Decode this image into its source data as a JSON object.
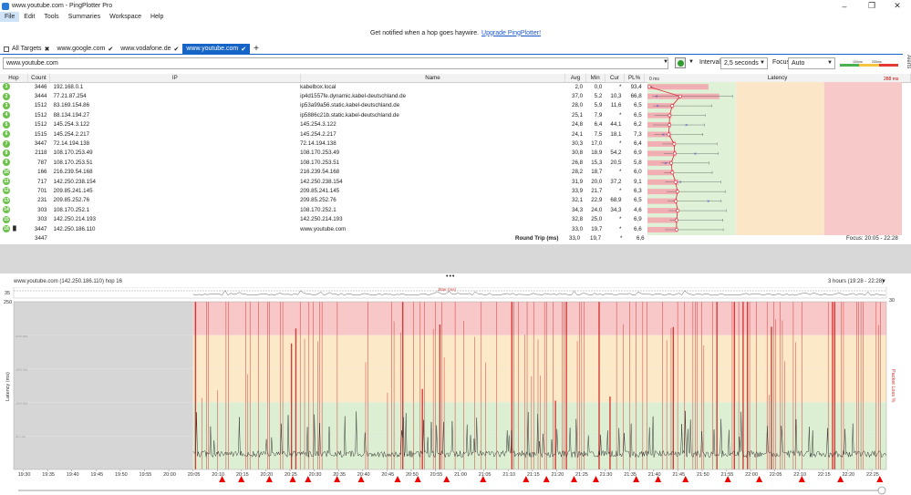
{
  "window": {
    "title": "www.youtube.com - PingPlotter Pro"
  },
  "menu": [
    "File",
    "Edit",
    "Tools",
    "Summaries",
    "Workspace",
    "Help"
  ],
  "banner": {
    "text": "Get notified when a hop goes haywire.",
    "link": "Upgrade PingPlotter!"
  },
  "tabs": [
    {
      "label": "All Targets",
      "mark": "✖"
    },
    {
      "label": "www.google.com",
      "mark": "✔"
    },
    {
      "label": "www.vodafone.de",
      "mark": "✔"
    },
    {
      "label": "www.youtube.com",
      "mark": "✔",
      "active": true
    }
  ],
  "toolbar": {
    "target": "www.youtube.com",
    "interval_label": "Interval",
    "interval_value": "2,5 seconds",
    "focus_label": "Focus",
    "focus_value": "Auto",
    "legend_low": "100ms",
    "legend_high": "200ms",
    "alerts": "Alerts"
  },
  "columns": [
    "Hop",
    "Count",
    "IP",
    "Name",
    "Avg",
    "Min",
    "Cur",
    "PL%",
    "Latency"
  ],
  "latency_header": {
    "left": "0 ms",
    "right": "288 ms"
  },
  "hops": [
    {
      "hop": "1",
      "count": "3446",
      "ip": "192.168.0.1",
      "name": "kabelbox.local",
      "avg": "2,0",
      "min": "0,0",
      "cur": "*",
      "pl": "93,4"
    },
    {
      "hop": "2",
      "count": "3444",
      "ip": "77.21.87.254",
      "name": "ip4d1557fe.dynamic.kabel-deutschland.de",
      "avg": "37,0",
      "min": "5,2",
      "cur": "10,3",
      "pl": "66,8"
    },
    {
      "hop": "3",
      "count": "1512",
      "ip": "83.169.154.86",
      "name": "ip53a99a56.static.kabel-deutschland.de",
      "avg": "28,0",
      "min": "5,9",
      "cur": "11,6",
      "pl": "6,5"
    },
    {
      "hop": "4",
      "count": "1512",
      "ip": "88.134.194.27",
      "name": "ip5886c21b.static.kabel-deutschland.de",
      "avg": "25,1",
      "min": "7,9",
      "cur": "*",
      "pl": "6,5"
    },
    {
      "hop": "5",
      "count": "1512",
      "ip": "145.254.3.122",
      "name": "145.254.3.122",
      "avg": "24,8",
      "min": "6,4",
      "cur": "44,1",
      "pl": "6,2"
    },
    {
      "hop": "6",
      "count": "1515",
      "ip": "145.254.2.217",
      "name": "145.254.2.217",
      "avg": "24,1",
      "min": "7,5",
      "cur": "18,1",
      "pl": "7,3"
    },
    {
      "hop": "7",
      "count": "3447",
      "ip": "72.14.194.138",
      "name": "72.14.194.138",
      "avg": "30,3",
      "min": "17,0",
      "cur": "*",
      "pl": "6,4"
    },
    {
      "hop": "8",
      "count": "2118",
      "ip": "108.170.253.49",
      "name": "108.170.253.49",
      "avg": "30,8",
      "min": "18,9",
      "cur": "54,2",
      "pl": "6,9"
    },
    {
      "hop": "9",
      "count": "787",
      "ip": "108.170.253.51",
      "name": "108.170.253.51",
      "avg": "26,8",
      "min": "15,3",
      "cur": "20,5",
      "pl": "5,8"
    },
    {
      "hop": "10",
      "count": "166",
      "ip": "216.239.54.168",
      "name": "216.239.54.168",
      "avg": "28,2",
      "min": "18,7",
      "cur": "*",
      "pl": "6,0"
    },
    {
      "hop": "11",
      "count": "717",
      "ip": "142.250.238.154",
      "name": "142.250.238.154",
      "avg": "31,9",
      "min": "20,0",
      "cur": "37,2",
      "pl": "9,1"
    },
    {
      "hop": "12",
      "count": "701",
      "ip": "209.85.241.145",
      "name": "209.85.241.145",
      "avg": "33,9",
      "min": "21,7",
      "cur": "*",
      "pl": "6,3"
    },
    {
      "hop": "13",
      "count": "231",
      "ip": "209.85.252.76",
      "name": "209.85.252.76",
      "avg": "32,1",
      "min": "22,9",
      "cur": "68,9",
      "pl": "6,5"
    },
    {
      "hop": "14",
      "count": "303",
      "ip": "108.170.252.1",
      "name": "108.170.252.1",
      "avg": "34,3",
      "min": "24,0",
      "cur": "34,3",
      "pl": "4,6"
    },
    {
      "hop": "15",
      "count": "303",
      "ip": "142.250.214.193",
      "name": "142.250.214.193",
      "avg": "32,8",
      "min": "25,0",
      "cur": "*",
      "pl": "6,9"
    },
    {
      "hop": "16",
      "count": "3447",
      "ip": "142.250.186.110",
      "name": "www.youtube.com",
      "avg": "33,0",
      "min": "19,7",
      "cur": "*",
      "pl": "6,6"
    }
  ],
  "round_trip": {
    "count": "3447",
    "label": "Round Trip (ms)",
    "avg": "33,0",
    "min": "19,7",
    "cur": "*",
    "pl": "6,6",
    "focus": "Focus: 20:05 - 22:28"
  },
  "graph": {
    "header": "www.youtube.com (142.250.186.110) hop 16",
    "range": "3 hours (19:28 - 22:28)",
    "jitter_label": "Jitter (ms)",
    "top_left": "35",
    "top_right": "30",
    "y_max": "250",
    "y_label": "Latency (ms)",
    "pl_label": "Packet Loss %",
    "y_ticks": [
      "200 ms",
      "150 ms",
      "100 ms",
      "50 ms"
    ],
    "x_ticks": [
      "19:30",
      "19:35",
      "19:40",
      "19:45",
      "19:50",
      "19:55",
      "20:00",
      "20:05",
      "20:10",
      "20:15",
      "20:20",
      "20:25",
      "20:30",
      "20:35",
      "20:40",
      "20:45",
      "20:50",
      "20:55",
      "21:00",
      "21:05",
      "21:10",
      "21:15",
      "21:20",
      "21:25",
      "21:30",
      "21:35",
      "21:40",
      "21:45",
      "21:50",
      "21:55",
      "22:00",
      "22:05",
      "22:10",
      "22:15",
      "22:20",
      "22:25"
    ]
  }
}
